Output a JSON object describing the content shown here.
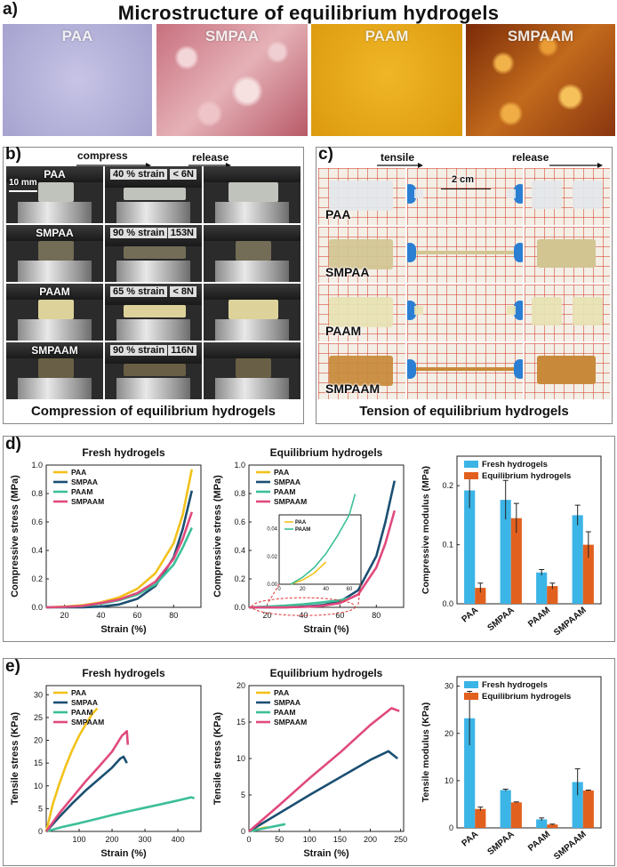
{
  "panel_a": {
    "label": "a)",
    "title": "Microstructure of equilibrium hydrogels",
    "images": [
      {
        "label": "PAA",
        "color": "#b9b6dc"
      },
      {
        "label": "SMPAA",
        "color": "#d9a0a8"
      },
      {
        "label": "PAAM",
        "color": "#e5a614"
      },
      {
        "label": "SMPAAM",
        "color": "#c26a1c"
      }
    ]
  },
  "panel_b": {
    "label": "b)",
    "compress": "compress",
    "release": "release",
    "scale": "10 mm",
    "rows": [
      {
        "name": "PAA",
        "strain": "40 % strain",
        "force": "< 6N",
        "gel_color": "#c8cbc4"
      },
      {
        "name": "SMPAA",
        "strain": "90 % strain",
        "force": "153N",
        "gel_color": "#77705a"
      },
      {
        "name": "PAAM",
        "strain": "65 % strain",
        "force": "< 8N",
        "gel_color": "#e7dca0"
      },
      {
        "name": "SMPAAM",
        "strain": "90 % strain",
        "force": "116N",
        "gel_color": "#6d6248"
      }
    ],
    "caption": "Compression of equilibrium hydrogels"
  },
  "panel_c": {
    "label": "c)",
    "tensile": "tensile",
    "release": "release",
    "scale": "2 cm",
    "rows": [
      {
        "name": "PAA",
        "gel_color": "#e4e7ea"
      },
      {
        "name": "SMPAA",
        "gel_color": "#d2c592"
      },
      {
        "name": "PAAM",
        "gel_color": "#e8e2b4"
      },
      {
        "name": "SMPAAM",
        "gel_color": "#c88a3a"
      }
    ],
    "caption": "Tension of equilibrium hydrogels"
  },
  "panel_d": {
    "label": "d)"
  },
  "panel_e": {
    "label": "e)"
  },
  "colors": {
    "PAA": "#f2c21b",
    "SMPAA": "#1b4f72",
    "PAAM": "#3cbf98",
    "SMPAAM": "#e04a7d",
    "fresh": "#3bb4e6",
    "equilibrium": "#e2601e"
  },
  "chart_data": [
    {
      "id": "d1",
      "type": "line",
      "title": "Fresh hydrogels",
      "xlabel": "Strain (%)",
      "ylabel": "Compressive stress (MPa)",
      "xlim": [
        10,
        95
      ],
      "ylim": [
        0,
        1.0
      ],
      "xticks": [
        20,
        40,
        60,
        80
      ],
      "yticks": [
        0.0,
        0.2,
        0.4,
        0.6,
        0.8,
        1.0
      ],
      "legend": [
        "PAA",
        "SMPAA",
        "PAAM",
        "SMPAAM"
      ],
      "series": [
        {
          "name": "PAA",
          "x": [
            10,
            20,
            30,
            40,
            50,
            60,
            70,
            80,
            85,
            90
          ],
          "y": [
            0,
            0.005,
            0.015,
            0.035,
            0.07,
            0.13,
            0.24,
            0.45,
            0.65,
            0.97
          ]
        },
        {
          "name": "SMPAA",
          "x": [
            10,
            20,
            30,
            40,
            50,
            60,
            70,
            80,
            85,
            90
          ],
          "y": [
            0,
            0,
            0,
            0.005,
            0.02,
            0.06,
            0.15,
            0.35,
            0.55,
            0.82
          ]
        },
        {
          "name": "PAAM",
          "x": [
            10,
            20,
            30,
            40,
            50,
            60,
            70,
            80,
            85,
            90
          ],
          "y": [
            0,
            0.003,
            0.01,
            0.025,
            0.05,
            0.09,
            0.16,
            0.3,
            0.42,
            0.56
          ]
        },
        {
          "name": "SMPAAM",
          "x": [
            10,
            20,
            30,
            40,
            50,
            60,
            70,
            80,
            85,
            90
          ],
          "y": [
            0,
            0.003,
            0.01,
            0.03,
            0.055,
            0.1,
            0.18,
            0.34,
            0.48,
            0.67
          ]
        }
      ]
    },
    {
      "id": "d2",
      "type": "line",
      "title": "Equilibrium hydrogels",
      "xlabel": "Strain (%)",
      "ylabel": "Compressive stress (MPa)",
      "xlim": [
        10,
        95
      ],
      "ylim": [
        0,
        1.0
      ],
      "xticks": [
        20,
        40,
        60,
        80
      ],
      "yticks": [
        0.0,
        0.2,
        0.4,
        0.6,
        0.8,
        1.0
      ],
      "legend": [
        "PAA",
        "SMPAA",
        "PAAM",
        "SMPAAM"
      ],
      "series": [
        {
          "name": "PAA",
          "x": [
            10,
            20,
            30,
            40
          ],
          "y": [
            0,
            0.003,
            0.008,
            0.016
          ]
        },
        {
          "name": "SMPAA",
          "x": [
            10,
            30,
            40,
            50,
            60,
            70,
            80,
            85,
            90
          ],
          "y": [
            0,
            0,
            0.005,
            0.015,
            0.04,
            0.12,
            0.36,
            0.6,
            0.89
          ]
        },
        {
          "name": "PAAM",
          "x": [
            10,
            20,
            30,
            40,
            50,
            60,
            65
          ],
          "y": [
            0,
            0.005,
            0.012,
            0.022,
            0.035,
            0.05,
            0.065
          ]
        },
        {
          "name": "SMPAAM",
          "x": [
            10,
            30,
            40,
            50,
            60,
            70,
            80,
            85,
            90
          ],
          "y": [
            0,
            0,
            0.003,
            0.01,
            0.03,
            0.09,
            0.28,
            0.45,
            0.68
          ]
        }
      ],
      "inset": {
        "xlim": [
          0,
          70
        ],
        "ylim": [
          0,
          0.05
        ],
        "xticks": [
          0,
          20,
          40,
          60
        ],
        "yticks": [
          0.0,
          0.02,
          0.04
        ],
        "legend": [
          "PAA",
          "PAAM"
        ]
      }
    },
    {
      "id": "d3",
      "type": "bar",
      "xlabel": "",
      "ylabel": "Compressive modulus (MPa)",
      "categories": [
        "PAA",
        "SMPAA",
        "PAAM",
        "SMPAAM"
      ],
      "ylim": [
        0,
        0.25
      ],
      "yticks": [
        0.0,
        0.1,
        0.2
      ],
      "series": [
        {
          "name": "Fresh hydrogels",
          "values": [
            0.192,
            0.176,
            0.053,
            0.15
          ],
          "errors": [
            0.03,
            0.033,
            0.005,
            0.017
          ]
        },
        {
          "name": "Equilibrium hydrogels",
          "values": [
            0.027,
            0.145,
            0.03,
            0.1
          ],
          "errors": [
            0.008,
            0.025,
            0.005,
            0.022
          ]
        }
      ]
    },
    {
      "id": "e1",
      "type": "line",
      "title": "Fresh hydrogels",
      "xlabel": "Strain (%)",
      "ylabel": "Tensile stress (KPa)",
      "xlim": [
        0,
        470
      ],
      "ylim": [
        0,
        32
      ],
      "xticks": [
        100,
        200,
        300,
        400
      ],
      "yticks": [
        0,
        5,
        10,
        15,
        20,
        25,
        30
      ],
      "legend": [
        "PAA",
        "SMPAA",
        "PAAM",
        "SMPAAM"
      ],
      "series": [
        {
          "name": "PAA",
          "x": [
            0,
            20,
            40,
            60,
            80,
            100,
            120,
            140,
            155
          ],
          "y": [
            0,
            6,
            10.5,
            14.5,
            18,
            21,
            23.5,
            25.8,
            27
          ]
        },
        {
          "name": "SMPAA",
          "x": [
            0,
            40,
            80,
            120,
            160,
            200,
            225,
            235,
            245
          ],
          "y": [
            0,
            3.2,
            6.2,
            9,
            11.5,
            14,
            16,
            16.4,
            15
          ]
        },
        {
          "name": "PAAM",
          "x": [
            0,
            50,
            100,
            150,
            200,
            250,
            300,
            350,
            400,
            440,
            450
          ],
          "y": [
            0,
            1,
            1.8,
            2.7,
            3.6,
            4.4,
            5.2,
            6,
            6.8,
            7.5,
            7.3
          ]
        },
        {
          "name": "SMPAAM",
          "x": [
            0,
            40,
            80,
            120,
            160,
            200,
            230,
            245,
            248
          ],
          "y": [
            0,
            4,
            7.5,
            11,
            14.2,
            17.5,
            21,
            22,
            19
          ]
        }
      ]
    },
    {
      "id": "e2",
      "type": "line",
      "title": "Equilibrium hydrogels",
      "xlabel": "Strain (%)",
      "ylabel": "Tensile stress (KPa)",
      "xlim": [
        0,
        255
      ],
      "ylim": [
        0,
        20
      ],
      "xticks": [
        0,
        50,
        100,
        150,
        200,
        250
      ],
      "yticks": [
        0,
        5,
        10,
        15,
        20
      ],
      "legend": [
        "PAA",
        "SMPAA",
        "PAAM",
        "SMPAAM"
      ],
      "series": [
        {
          "name": "PAA",
          "x": [
            0,
            15,
            30
          ],
          "y": [
            0,
            0.3,
            0.6
          ]
        },
        {
          "name": "SMPAA",
          "x": [
            0,
            50,
            100,
            150,
            200,
            230,
            245
          ],
          "y": [
            0,
            2.5,
            5,
            7.4,
            9.8,
            11,
            10
          ]
        },
        {
          "name": "PAAM",
          "x": [
            0,
            30,
            60
          ],
          "y": [
            0,
            0.5,
            1.0
          ]
        },
        {
          "name": "SMPAAM",
          "x": [
            0,
            50,
            100,
            150,
            200,
            235,
            248
          ],
          "y": [
            0,
            3.6,
            7.3,
            10.8,
            14.6,
            16.9,
            16.5
          ]
        }
      ]
    },
    {
      "id": "e3",
      "type": "bar",
      "xlabel": "",
      "ylabel": "Tensile modulus (KPa)",
      "categories": [
        "PAA",
        "SMPAA",
        "PAAM",
        "SMPAAM"
      ],
      "ylim": [
        0,
        32
      ],
      "yticks": [
        0,
        10,
        20,
        30
      ],
      "series": [
        {
          "name": "Fresh hydrogels",
          "values": [
            23.2,
            8.0,
            1.8,
            9.7
          ],
          "errors": [
            5.7,
            0.2,
            0.3,
            2.8
          ]
        },
        {
          "name": "Equilibrium hydrogels",
          "values": [
            4.0,
            5.4,
            0.7,
            7.9
          ],
          "errors": [
            0.4,
            0.1,
            0.1,
            0.1
          ]
        }
      ]
    }
  ]
}
